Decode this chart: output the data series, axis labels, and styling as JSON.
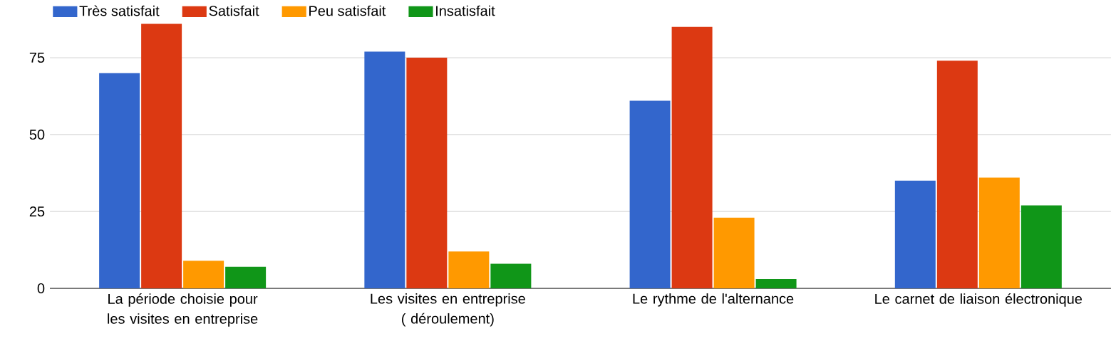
{
  "chart_data": {
    "type": "bar",
    "categories": [
      "La période choisie pour les visites en entreprise",
      "Les visites en entreprise ( déroulement)",
      "Le rythme de l'alternance",
      "Le carnet de liaison électronique"
    ],
    "series": [
      {
        "name": "Très satisfait",
        "color": "#3366cc",
        "values": [
          70,
          77,
          61,
          35
        ]
      },
      {
        "name": "Satisfait",
        "color": "#dc3912",
        "values": [
          86,
          75,
          85,
          74
        ]
      },
      {
        "name": "Peu satisfait",
        "color": "#ff9900",
        "values": [
          9,
          12,
          23,
          36
        ]
      },
      {
        "name": "Insatisfait",
        "color": "#109618",
        "values": [
          7,
          8,
          3,
          27
        ]
      }
    ],
    "ylim": [
      0,
      86
    ],
    "yticks": [
      0,
      25,
      50,
      75
    ],
    "grid": "y",
    "legend": "top left"
  }
}
